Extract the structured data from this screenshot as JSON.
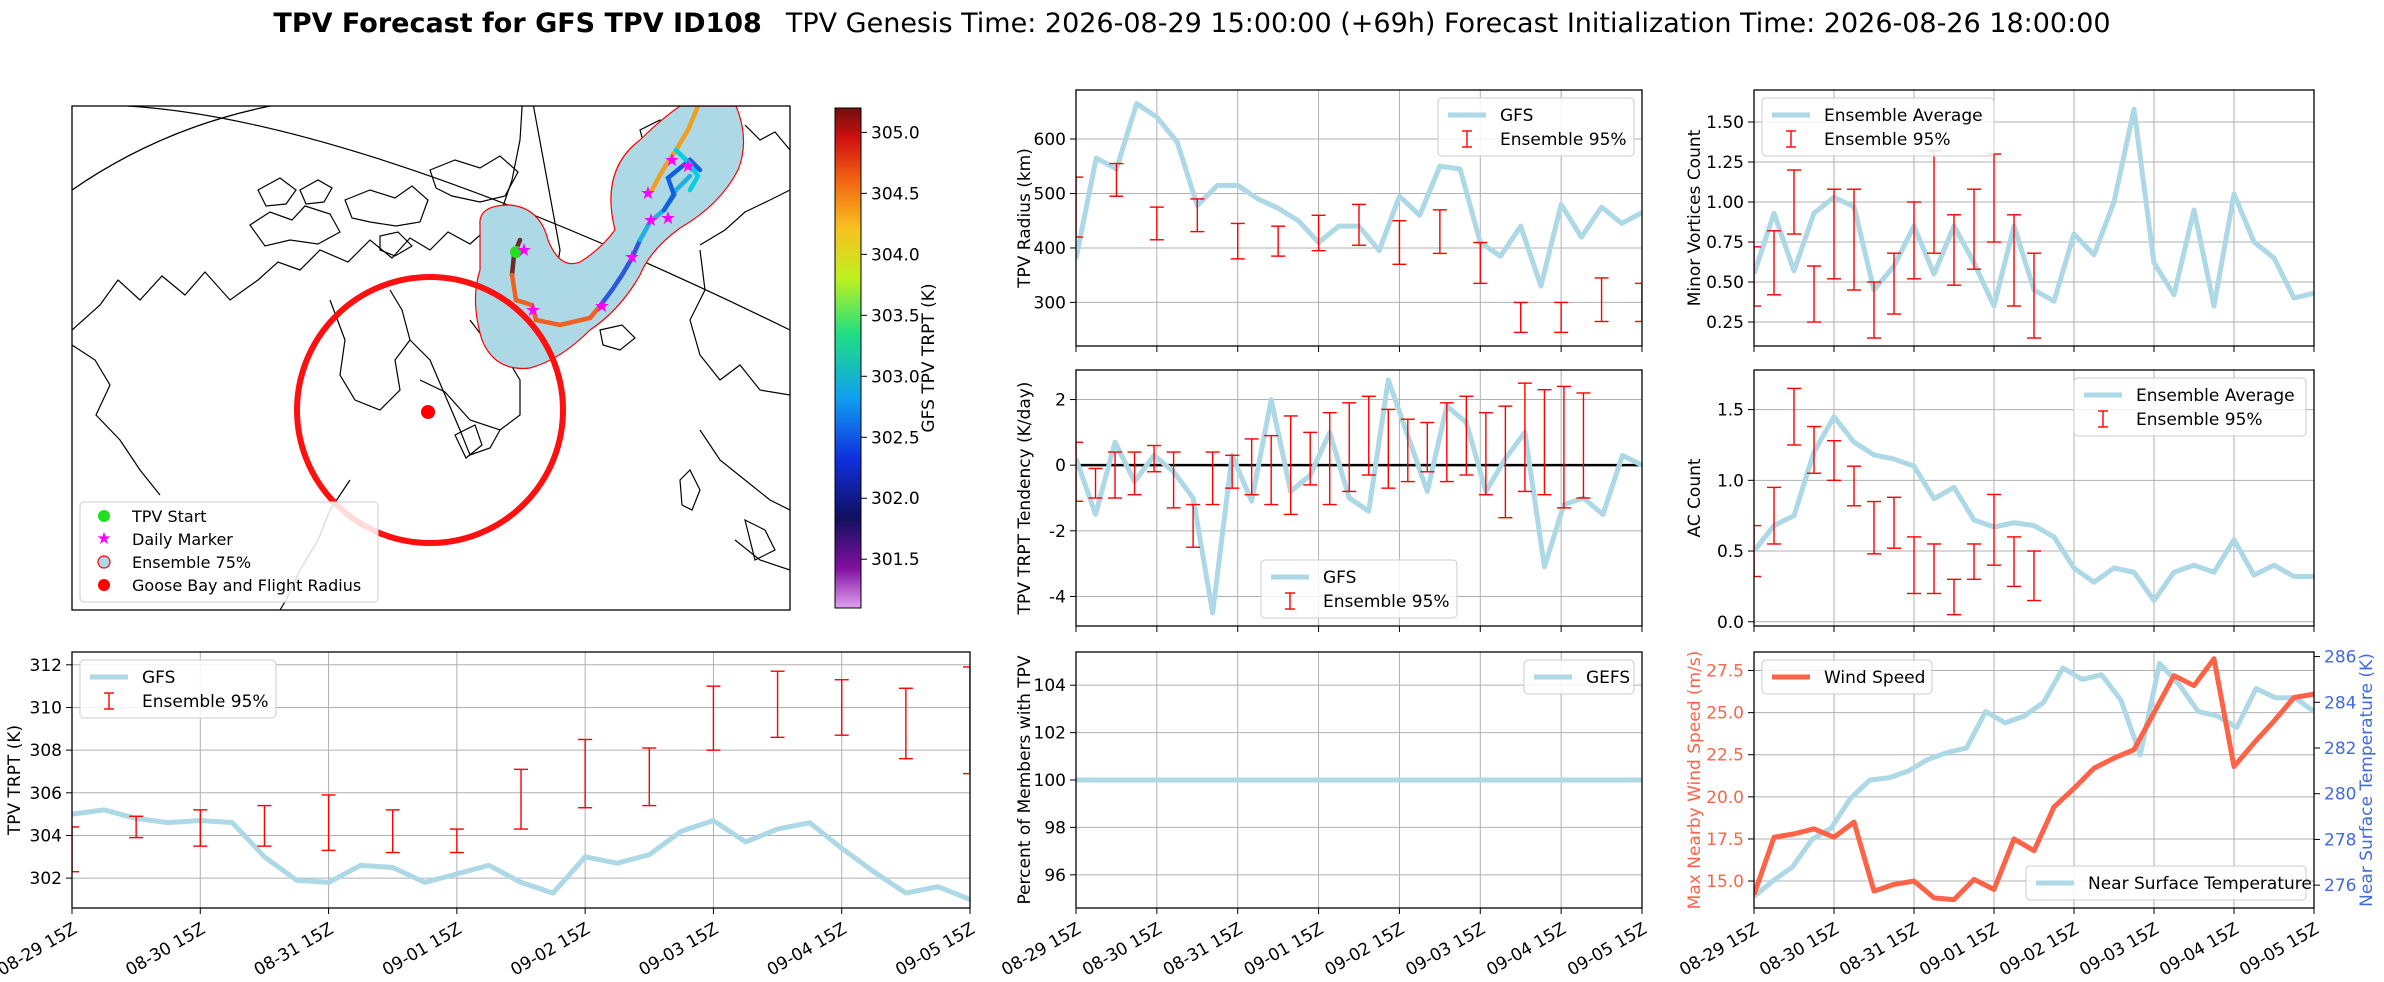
{
  "figure": {
    "title_bold": "TPV Forecast for GFS TPV ID108",
    "title_rest": "TPV Genesis Time: 2026-08-29 15:00:00 (+69h)   Forecast Initialization Time: 2026-08-26 18:00:00"
  },
  "colors": {
    "gfs_line": "#add8e6",
    "err_bar": "#ff0000",
    "wind": "#ff6347",
    "temp_axis": "#4169e1",
    "cone": "#add8e6"
  },
  "map": {
    "legend": [
      "TPV Start",
      "Daily Marker",
      "Ensemble 75%",
      "Goose Bay and Flight Radius"
    ],
    "colorbar_label": "GFS TPV TRPT (K)",
    "colorbar_ticks": [
      "301.5",
      "302.0",
      "302.5",
      "303.0",
      "303.5",
      "304.0",
      "304.5",
      "305.0"
    ]
  },
  "time_ticks": [
    "08-29 15Z",
    "08-30 15Z",
    "08-31 15Z",
    "09-01 15Z",
    "09-02 15Z",
    "09-03 15Z",
    "09-04 15Z",
    "09-05 15Z"
  ],
  "chart_data": [
    {
      "id": "trpt",
      "type": "line",
      "ylabel": "TPV TRPT (K)",
      "ylim": [
        300.6,
        312.6
      ],
      "yticks": [
        302,
        304,
        306,
        308,
        310,
        312
      ],
      "legend": [
        "GFS",
        "Ensemble 95%"
      ],
      "legend_loc": "upper-left",
      "gfs": [
        305.0,
        305.2,
        304.8,
        304.6,
        304.7,
        304.6,
        303.0,
        301.9,
        301.8,
        302.6,
        302.5,
        301.8,
        302.2,
        302.6,
        301.8,
        301.3,
        303.0,
        302.7,
        303.1,
        304.2,
        304.7,
        303.7,
        304.3,
        304.6,
        303.4,
        302.3,
        301.3,
        301.6,
        301.0
      ],
      "errorbars": [
        [
          0,
          302.3,
          304.4
        ],
        [
          2,
          303.9,
          304.9
        ],
        [
          4,
          303.5,
          305.2
        ],
        [
          6,
          303.5,
          305.4
        ],
        [
          8,
          303.3,
          305.9
        ],
        [
          10,
          303.2,
          305.2
        ],
        [
          12,
          303.2,
          304.3
        ],
        [
          14,
          304.3,
          307.1
        ],
        [
          16,
          305.3,
          308.5
        ],
        [
          18,
          305.4,
          308.1
        ],
        [
          20,
          308.0,
          311.0
        ],
        [
          22,
          308.6,
          311.7
        ],
        [
          24,
          308.7,
          311.3
        ],
        [
          26,
          307.6,
          310.9
        ],
        [
          28,
          306.9,
          311.9
        ]
      ]
    },
    {
      "id": "radius",
      "type": "line",
      "ylabel": "TPV Radius (km)",
      "ylim": [
        220,
        690
      ],
      "yticks": [
        300,
        400,
        500,
        600
      ],
      "legend": [
        "GFS",
        "Ensemble 95%"
      ],
      "legend_loc": "upper-right",
      "gfs": [
        380,
        565,
        545,
        665,
        640,
        595,
        478,
        515,
        515,
        490,
        473,
        450,
        410,
        440,
        440,
        395,
        495,
        460,
        550,
        545,
        410,
        385,
        440,
        330,
        480,
        420,
        475,
        445,
        465
      ],
      "errorbars": [
        [
          0,
          420,
          530
        ],
        [
          2,
          495,
          555
        ],
        [
          4,
          415,
          475
        ],
        [
          6,
          430,
          490
        ],
        [
          8,
          380,
          445
        ],
        [
          10,
          385,
          440
        ],
        [
          12,
          395,
          460
        ],
        [
          14,
          405,
          480
        ],
        [
          16,
          370,
          450
        ],
        [
          18,
          390,
          470
        ],
        [
          20,
          335,
          410
        ],
        [
          22,
          245,
          300
        ],
        [
          24,
          245,
          300
        ],
        [
          26,
          265,
          345
        ],
        [
          28,
          265,
          335
        ]
      ]
    },
    {
      "id": "tendency",
      "type": "line",
      "ylabel": "TPV TRPT Tendency (K/day)",
      "ylim": [
        -4.9,
        2.9
      ],
      "yticks": [
        -4,
        -2,
        0,
        2
      ],
      "legend": [
        "GFS",
        "Ensemble 95%"
      ],
      "legend_loc": "lower-center",
      "gfs": [
        0.2,
        -1.5,
        0.7,
        -0.5,
        0.3,
        -0.2,
        -1.0,
        -4.5,
        0.3,
        -1.1,
        2.0,
        -0.8,
        -0.3,
        1.0,
        -1.0,
        -1.4,
        2.6,
        0.9,
        -0.8,
        1.8,
        1.3,
        -0.8,
        0.2,
        1.0,
        -3.1,
        -1.2,
        -1.0,
        -1.5,
        0.3,
        0.0
      ],
      "errorbars": [
        [
          0,
          -1.1,
          0.7
        ],
        [
          1,
          -1.0,
          -0.1
        ],
        [
          2,
          -1.0,
          0.4
        ],
        [
          3,
          -0.9,
          0.4
        ],
        [
          4,
          -0.2,
          0.6
        ],
        [
          5,
          -1.3,
          0.4
        ],
        [
          6,
          -2.5,
          -1.2
        ],
        [
          7,
          -1.2,
          0.4
        ],
        [
          8,
          -0.7,
          0.3
        ],
        [
          9,
          -0.9,
          0.8
        ],
        [
          10,
          -1.2,
          0.9
        ],
        [
          11,
          -1.5,
          1.5
        ],
        [
          12,
          -0.6,
          1.0
        ],
        [
          13,
          -1.2,
          1.6
        ],
        [
          14,
          -0.8,
          1.9
        ],
        [
          15,
          -0.3,
          2.1
        ],
        [
          16,
          -0.7,
          1.7
        ],
        [
          17,
          -0.5,
          1.4
        ],
        [
          18,
          -0.2,
          1.3
        ],
        [
          19,
          -0.5,
          1.9
        ],
        [
          20,
          -0.3,
          2.1
        ],
        [
          21,
          -0.9,
          1.6
        ],
        [
          22,
          -1.6,
          1.8
        ],
        [
          23,
          -0.8,
          2.5
        ],
        [
          24,
          -0.9,
          2.3
        ],
        [
          25,
          -1.3,
          2.4
        ],
        [
          26,
          -1.0,
          2.2
        ]
      ]
    },
    {
      "id": "percent",
      "type": "line",
      "ylabel": "Percent of Members with TPV",
      "ylim": [
        94.6,
        105.4
      ],
      "yticks": [
        96,
        98,
        100,
        102,
        104
      ],
      "legend": [
        "GEFS"
      ],
      "legend_loc": "upper-right",
      "gefs": [
        100,
        100
      ]
    },
    {
      "id": "minor",
      "type": "line",
      "ylabel": "Minor Vortices Count",
      "ylim": [
        0.1,
        1.7
      ],
      "yticks": [
        0.25,
        0.5,
        0.75,
        1.0,
        1.25,
        1.5
      ],
      "legend": [
        "Ensemble Average",
        "Ensemble 95%"
      ],
      "legend_loc": "upper-left",
      "avg": [
        0.55,
        0.93,
        0.57,
        0.93,
        1.03,
        0.97,
        0.45,
        0.6,
        0.85,
        0.55,
        0.85,
        0.62,
        0.35,
        0.85,
        0.45,
        0.38,
        0.8,
        0.67,
        1.0,
        1.58,
        0.62,
        0.42,
        0.95,
        0.35,
        1.05,
        0.75,
        0.65,
        0.4,
        0.43
      ],
      "errorbars": [
        [
          0,
          0.35,
          0.72
        ],
        [
          1,
          0.42,
          0.82
        ],
        [
          2,
          0.8,
          1.2
        ],
        [
          3,
          0.25,
          0.6
        ],
        [
          4,
          0.52,
          1.08
        ],
        [
          5,
          0.45,
          1.08
        ],
        [
          6,
          0.15,
          0.5
        ],
        [
          7,
          0.3,
          0.68
        ],
        [
          8,
          0.52,
          1.0
        ],
        [
          9,
          0.68,
          1.32
        ],
        [
          10,
          0.48,
          0.92
        ],
        [
          11,
          0.58,
          1.08
        ],
        [
          12,
          0.75,
          1.3
        ],
        [
          13,
          0.35,
          0.92
        ],
        [
          14,
          0.15,
          0.68
        ]
      ]
    },
    {
      "id": "ac",
      "type": "line",
      "ylabel": "AC Count",
      "ylim": [
        -0.03,
        1.78
      ],
      "yticks": [
        0.0,
        0.5,
        1.0,
        1.5
      ],
      "legend": [
        "Ensemble Average",
        "Ensemble 95%"
      ],
      "legend_loc": "upper-right",
      "avg": [
        0.5,
        0.68,
        0.75,
        1.2,
        1.45,
        1.27,
        1.18,
        1.15,
        1.1,
        0.87,
        0.95,
        0.72,
        0.67,
        0.7,
        0.68,
        0.6,
        0.38,
        0.28,
        0.38,
        0.35,
        0.15,
        0.35,
        0.4,
        0.35,
        0.58,
        0.33,
        0.4,
        0.32,
        0.32
      ],
      "errorbars": [
        [
          0,
          0.32,
          0.68
        ],
        [
          1,
          0.55,
          0.95
        ],
        [
          2,
          1.25,
          1.65
        ],
        [
          3,
          1.05,
          1.38
        ],
        [
          4,
          1.0,
          1.28
        ],
        [
          5,
          0.82,
          1.1
        ],
        [
          6,
          0.48,
          0.85
        ],
        [
          7,
          0.52,
          0.88
        ],
        [
          8,
          0.2,
          0.6
        ],
        [
          9,
          0.2,
          0.55
        ],
        [
          10,
          0.05,
          0.3
        ],
        [
          11,
          0.3,
          0.55
        ],
        [
          12,
          0.4,
          0.9
        ],
        [
          13,
          0.25,
          0.6
        ],
        [
          14,
          0.15,
          0.5
        ]
      ]
    },
    {
      "id": "wind_temp",
      "type": "line",
      "ylabel_left": "Max Nearby Wind Speed (m/s)",
      "ylabel_right": "Near Surface Temperature (K)",
      "ylim_left": [
        13.4,
        28.6
      ],
      "yticks_left": [
        15.0,
        17.5,
        20.0,
        22.5,
        25.0,
        27.5
      ],
      "ylim_right": [
        275.0,
        286.2
      ],
      "yticks_right": [
        276,
        278,
        280,
        282,
        284,
        286
      ],
      "legend_left": [
        "Wind Speed"
      ],
      "legend_right": [
        "Near Surface Temperature"
      ],
      "wind": [
        14.2,
        17.6,
        17.8,
        18.1,
        17.6,
        18.5,
        14.4,
        14.8,
        15.0,
        14.0,
        13.9,
        15.1,
        14.5,
        17.5,
        16.8,
        19.4,
        20.5,
        21.7,
        22.3,
        22.8,
        25.0,
        27.2,
        26.6,
        28.2,
        21.8,
        23.2,
        24.5,
        25.9,
        26.1
      ],
      "temp": [
        275.5,
        276.2,
        276.8,
        278.0,
        278.5,
        279.8,
        280.6,
        280.7,
        281.0,
        281.5,
        281.8,
        282.0,
        283.6,
        283.1,
        283.4,
        284.0,
        285.5,
        285.0,
        285.2,
        284.1,
        281.7,
        285.7,
        284.8,
        283.6,
        283.4,
        282.9,
        284.6,
        284.2,
        284.2,
        283.6
      ]
    }
  ]
}
